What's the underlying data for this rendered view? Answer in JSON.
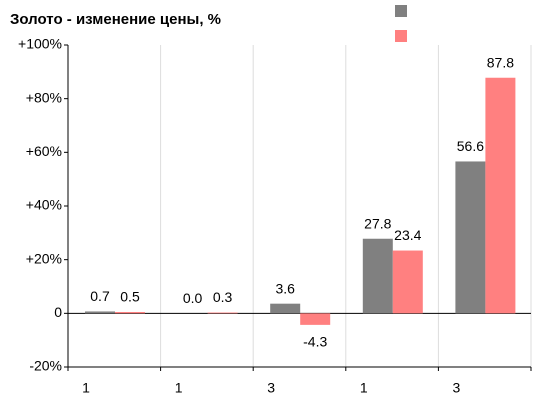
{
  "chart_data": {
    "type": "bar",
    "title": "Золото - изменение цены, %",
    "categories": [
      "1",
      "1",
      "3",
      "1",
      "3"
    ],
    "series": [
      {
        "color": "#808080",
        "values": [
          0.7,
          0.0,
          3.6,
          27.8,
          56.6
        ],
        "value_labels": [
          "0.7",
          "0.0",
          "3.6",
          "27.8",
          "56.6"
        ]
      },
      {
        "color": "#ff8080",
        "values": [
          0.5,
          0.3,
          -4.3,
          23.4,
          87.8
        ],
        "value_labels": [
          "0.5",
          "0.3",
          "-4.3",
          "23.4",
          "87.8"
        ]
      }
    ],
    "ylim": [
      -20,
      100
    ],
    "yticks": [
      {
        "value": -20,
        "label": "-20%"
      },
      0,
      {
        "value": 20,
        "label": "+20%"
      },
      {
        "value": 40,
        "label": "+40%"
      },
      {
        "value": 60,
        "label": "+60%"
      },
      {
        "value": 80,
        "label": "+80%"
      },
      {
        "value": 100,
        "label": "+100%"
      }
    ],
    "grid": true
  }
}
